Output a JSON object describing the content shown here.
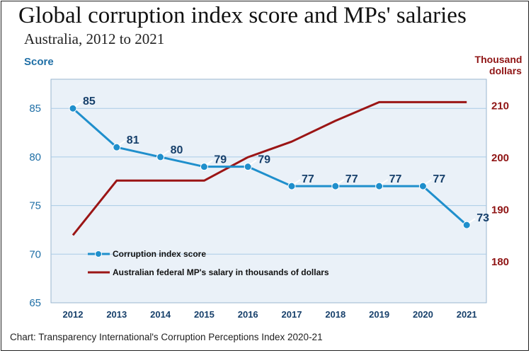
{
  "chart_data": {
    "type": "line",
    "title": "Global corruption index score and MPs' salaries",
    "subtitle": "Australia, 2012 to 2021",
    "source": "Chart: Transparency International's Corruption Perceptions Index 2020-21",
    "x": [
      "2012",
      "2013",
      "2014",
      "2015",
      "2016",
      "2017",
      "2018",
      "2019",
      "2020",
      "2021"
    ],
    "y_left": {
      "label": "Score",
      "ylim": [
        65,
        88
      ],
      "ticks": [
        65,
        70,
        75,
        80,
        85
      ]
    },
    "y_right": {
      "label_line1": "Thousand",
      "label_line2": "dollars",
      "ylim": [
        172,
        215
      ],
      "ticks": [
        180,
        190,
        200,
        210
      ]
    },
    "grid": true,
    "legend_position": "bottom-left inside plot",
    "series": [
      {
        "name": "Corruption index score",
        "axis": "left",
        "color": "#1f8fcc",
        "marker": "circle",
        "values": [
          85,
          81,
          80,
          79,
          79,
          77,
          77,
          77,
          77,
          73
        ],
        "labels": [
          "85",
          "81",
          "80",
          "79",
          "79",
          "77",
          "77",
          "77",
          "77",
          "73"
        ]
      },
      {
        "name": "Australian federal MP's salary in thousands of dollars",
        "axis": "right",
        "color": "#9b1515",
        "marker": "none",
        "values": [
          185,
          195.5,
          195.5,
          195.5,
          200,
          203,
          207,
          210.6,
          210.6,
          210.6
        ]
      }
    ]
  }
}
